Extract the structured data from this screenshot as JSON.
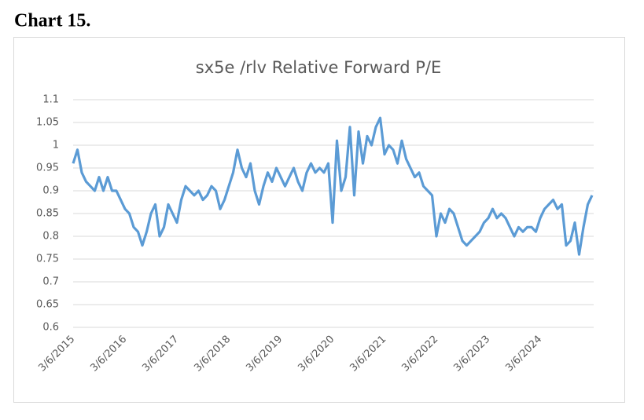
{
  "heading": "Chart 15.",
  "chart_data": {
    "type": "line",
    "title": "sx5e /rlv Relative Forward P/E",
    "categories": [
      "3/6/2015",
      null,
      null,
      null,
      null,
      null,
      null,
      null,
      null,
      null,
      null,
      null,
      "3/6/2016",
      null,
      null,
      null,
      null,
      null,
      null,
      null,
      null,
      null,
      null,
      null,
      "3/6/2017",
      null,
      null,
      null,
      null,
      null,
      null,
      null,
      null,
      null,
      null,
      null,
      "3/6/2018",
      null,
      null,
      null,
      null,
      null,
      null,
      null,
      null,
      null,
      null,
      null,
      "3/6/2019",
      null,
      null,
      null,
      null,
      null,
      null,
      null,
      null,
      null,
      null,
      null,
      "3/6/2020",
      null,
      null,
      null,
      null,
      null,
      null,
      null,
      null,
      null,
      null,
      null,
      "3/6/2021",
      null,
      null,
      null,
      null,
      null,
      null,
      null,
      null,
      null,
      null,
      null,
      "3/6/2022",
      null,
      null,
      null,
      null,
      null,
      null,
      null,
      null,
      null,
      null,
      null,
      "3/6/2023",
      null,
      null,
      null,
      null,
      null,
      null,
      null,
      null,
      null,
      null,
      null,
      "3/6/2024",
      null,
      null,
      null,
      null,
      null,
      null,
      null,
      null,
      null,
      null,
      null,
      null
    ],
    "series": [
      {
        "color": "#5b9bd5",
        "values": [
          0.96,
          0.99,
          0.94,
          0.92,
          0.91,
          0.9,
          0.93,
          0.9,
          0.93,
          0.9,
          0.9,
          0.88,
          0.86,
          0.85,
          0.82,
          0.81,
          0.78,
          0.81,
          0.85,
          0.87,
          0.8,
          0.82,
          0.87,
          0.85,
          0.83,
          0.88,
          0.91,
          0.9,
          0.89,
          0.9,
          0.88,
          0.89,
          0.91,
          0.9,
          0.86,
          0.88,
          0.91,
          0.94,
          0.99,
          0.95,
          0.93,
          0.96,
          0.9,
          0.87,
          0.91,
          0.94,
          0.92,
          0.95,
          0.93,
          0.91,
          0.93,
          0.95,
          0.92,
          0.9,
          0.94,
          0.96,
          0.94,
          0.95,
          0.94,
          0.96,
          0.83,
          1.01,
          0.9,
          0.93,
          1.04,
          0.89,
          1.03,
          0.96,
          1.02,
          1.0,
          1.04,
          1.06,
          0.98,
          1.0,
          0.99,
          0.96,
          1.01,
          0.97,
          0.95,
          0.93,
          0.94,
          0.91,
          0.9,
          0.89,
          0.8,
          0.85,
          0.83,
          0.86,
          0.85,
          0.82,
          0.79,
          0.78,
          0.79,
          0.8,
          0.81,
          0.83,
          0.84,
          0.86,
          0.84,
          0.85,
          0.84,
          0.82,
          0.8,
          0.82,
          0.81,
          0.82,
          0.82,
          0.81,
          0.84,
          0.86,
          0.87,
          0.88,
          0.86,
          0.87,
          0.78,
          0.79,
          0.83,
          0.76,
          0.82,
          0.87,
          0.89
        ]
      }
    ],
    "ylim": [
      0.6,
      1.1
    ],
    "yticks": [
      0.6,
      0.65,
      0.7,
      0.75,
      0.8,
      0.85,
      0.9,
      0.95,
      1,
      1.05,
      1.1
    ],
    "grid": true
  }
}
